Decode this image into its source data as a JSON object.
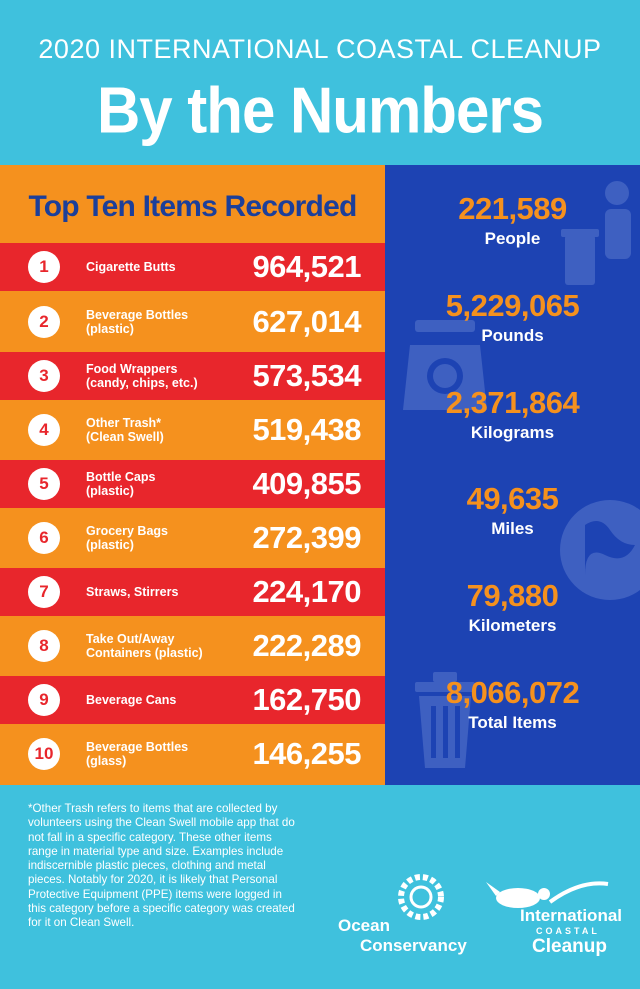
{
  "header": {
    "subtitle": "2020 INTERNATIONAL COASTAL CLEANUP",
    "title": "By the Numbers"
  },
  "top_ten": {
    "heading": "Top Ten Items Recorded",
    "items": [
      {
        "rank": "1",
        "label": "Cigarette Butts",
        "count": "964,521"
      },
      {
        "rank": "2",
        "label": "Beverage Bottles\n(plastic)",
        "count": "627,014"
      },
      {
        "rank": "3",
        "label": "Food Wrappers\n(candy, chips, etc.)",
        "count": "573,534"
      },
      {
        "rank": "4",
        "label": "Other Trash*\n(Clean Swell)",
        "count": "519,438"
      },
      {
        "rank": "5",
        "label": "Bottle Caps\n(plastic)",
        "count": "409,855"
      },
      {
        "rank": "6",
        "label": "Grocery Bags\n(plastic)",
        "count": "272,399"
      },
      {
        "rank": "7",
        "label": "Straws, Stirrers",
        "count": "224,170"
      },
      {
        "rank": "8",
        "label": "Take Out/Away\nContainers (plastic)",
        "count": "222,289"
      },
      {
        "rank": "9",
        "label": "Beverage Cans",
        "count": "162,750"
      },
      {
        "rank": "10",
        "label": "Beverage Bottles\n(glass)",
        "count": "146,255"
      }
    ]
  },
  "stats": [
    {
      "value": "221,589",
      "unit": "People",
      "icon": "person-trash-icon"
    },
    {
      "value": "5,229,065",
      "unit": "Pounds",
      "icon": "scale-icon"
    },
    {
      "value": "2,371,864",
      "unit": "Kilograms",
      "icon": "scale-icon"
    },
    {
      "value": "49,635",
      "unit": "Miles",
      "icon": "globe-icon"
    },
    {
      "value": "79,880",
      "unit": "Kilometers",
      "icon": "globe-icon"
    },
    {
      "value": "8,066,072",
      "unit": "Total Items",
      "icon": "trash-can-icon"
    }
  ],
  "footnote": "*Other Trash refers to items that are collected by volunteers using the Clean Swell mobile app that do not fall in a specific category. These other items range in material type and size. Examples include indiscernible plastic pieces, clothing and metal pieces. Notably for 2020, it is likely that Personal Protective Equipment (PPE) items were logged in this category before a specific category was created for it on Clean Swell.",
  "logos": {
    "ocean_line1": "Ocean",
    "ocean_line2": "Conservancy",
    "icc_line1": "International",
    "icc_line2": "COASTAL",
    "icc_line3": "Cleanup"
  },
  "colors": {
    "background": "#3fc1dd",
    "orange": "#f5911e",
    "red": "#e8262c",
    "navy": "#1d43b3",
    "heading_blue": "#1c3f9a"
  }
}
